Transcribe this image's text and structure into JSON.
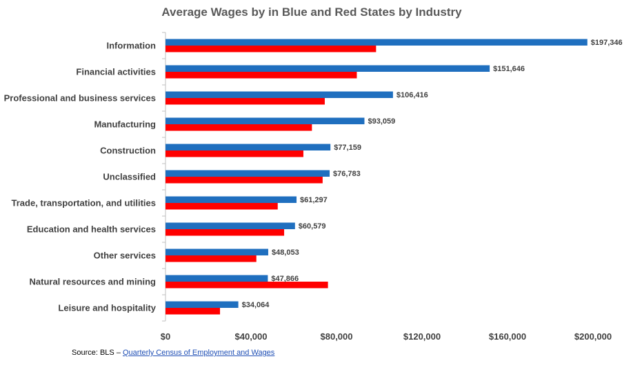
{
  "chart_data": {
    "type": "bar",
    "orientation": "horizontal",
    "title": "Average Wages by in Blue and Red States by Industry",
    "categories": [
      "Information",
      "Financial activities",
      "Professional and business services",
      "Manufacturing",
      "Construction",
      "Unclassified",
      "Trade, transportation, and utilities",
      "Education and health services",
      "Other services",
      "Natural resources and mining",
      "Leisure and hospitality"
    ],
    "series": [
      {
        "name": "Blue States",
        "color": "#1f6fbf",
        "values": [
          197346,
          151646,
          106416,
          93059,
          77159,
          76783,
          61297,
          60579,
          48053,
          47866,
          34064
        ],
        "data_labels": [
          "$197,346",
          "$151,646",
          "$106,416",
          "$93,059",
          "$77,159",
          "$76,783",
          "$61,297",
          "$60,579",
          "$48,053",
          "$47,866",
          "$34,064"
        ]
      },
      {
        "name": "Red States",
        "color": "#ff0000",
        "values": [
          98500,
          89500,
          74500,
          68500,
          64500,
          73500,
          52500,
          55500,
          42500,
          76000,
          25500
        ]
      }
    ],
    "xlim": [
      0,
      200000
    ],
    "xticks": [
      0,
      40000,
      80000,
      120000,
      160000,
      200000
    ],
    "xtick_labels": [
      "$0",
      "$40,000",
      "$80,000",
      "$120,000",
      "$160,000",
      "$200,000"
    ],
    "grid": false,
    "xlabel": "",
    "ylabel": ""
  },
  "source": {
    "prefix": "Source: BLS – ",
    "link_text": "Quarterly Census of Employment and Wages"
  }
}
